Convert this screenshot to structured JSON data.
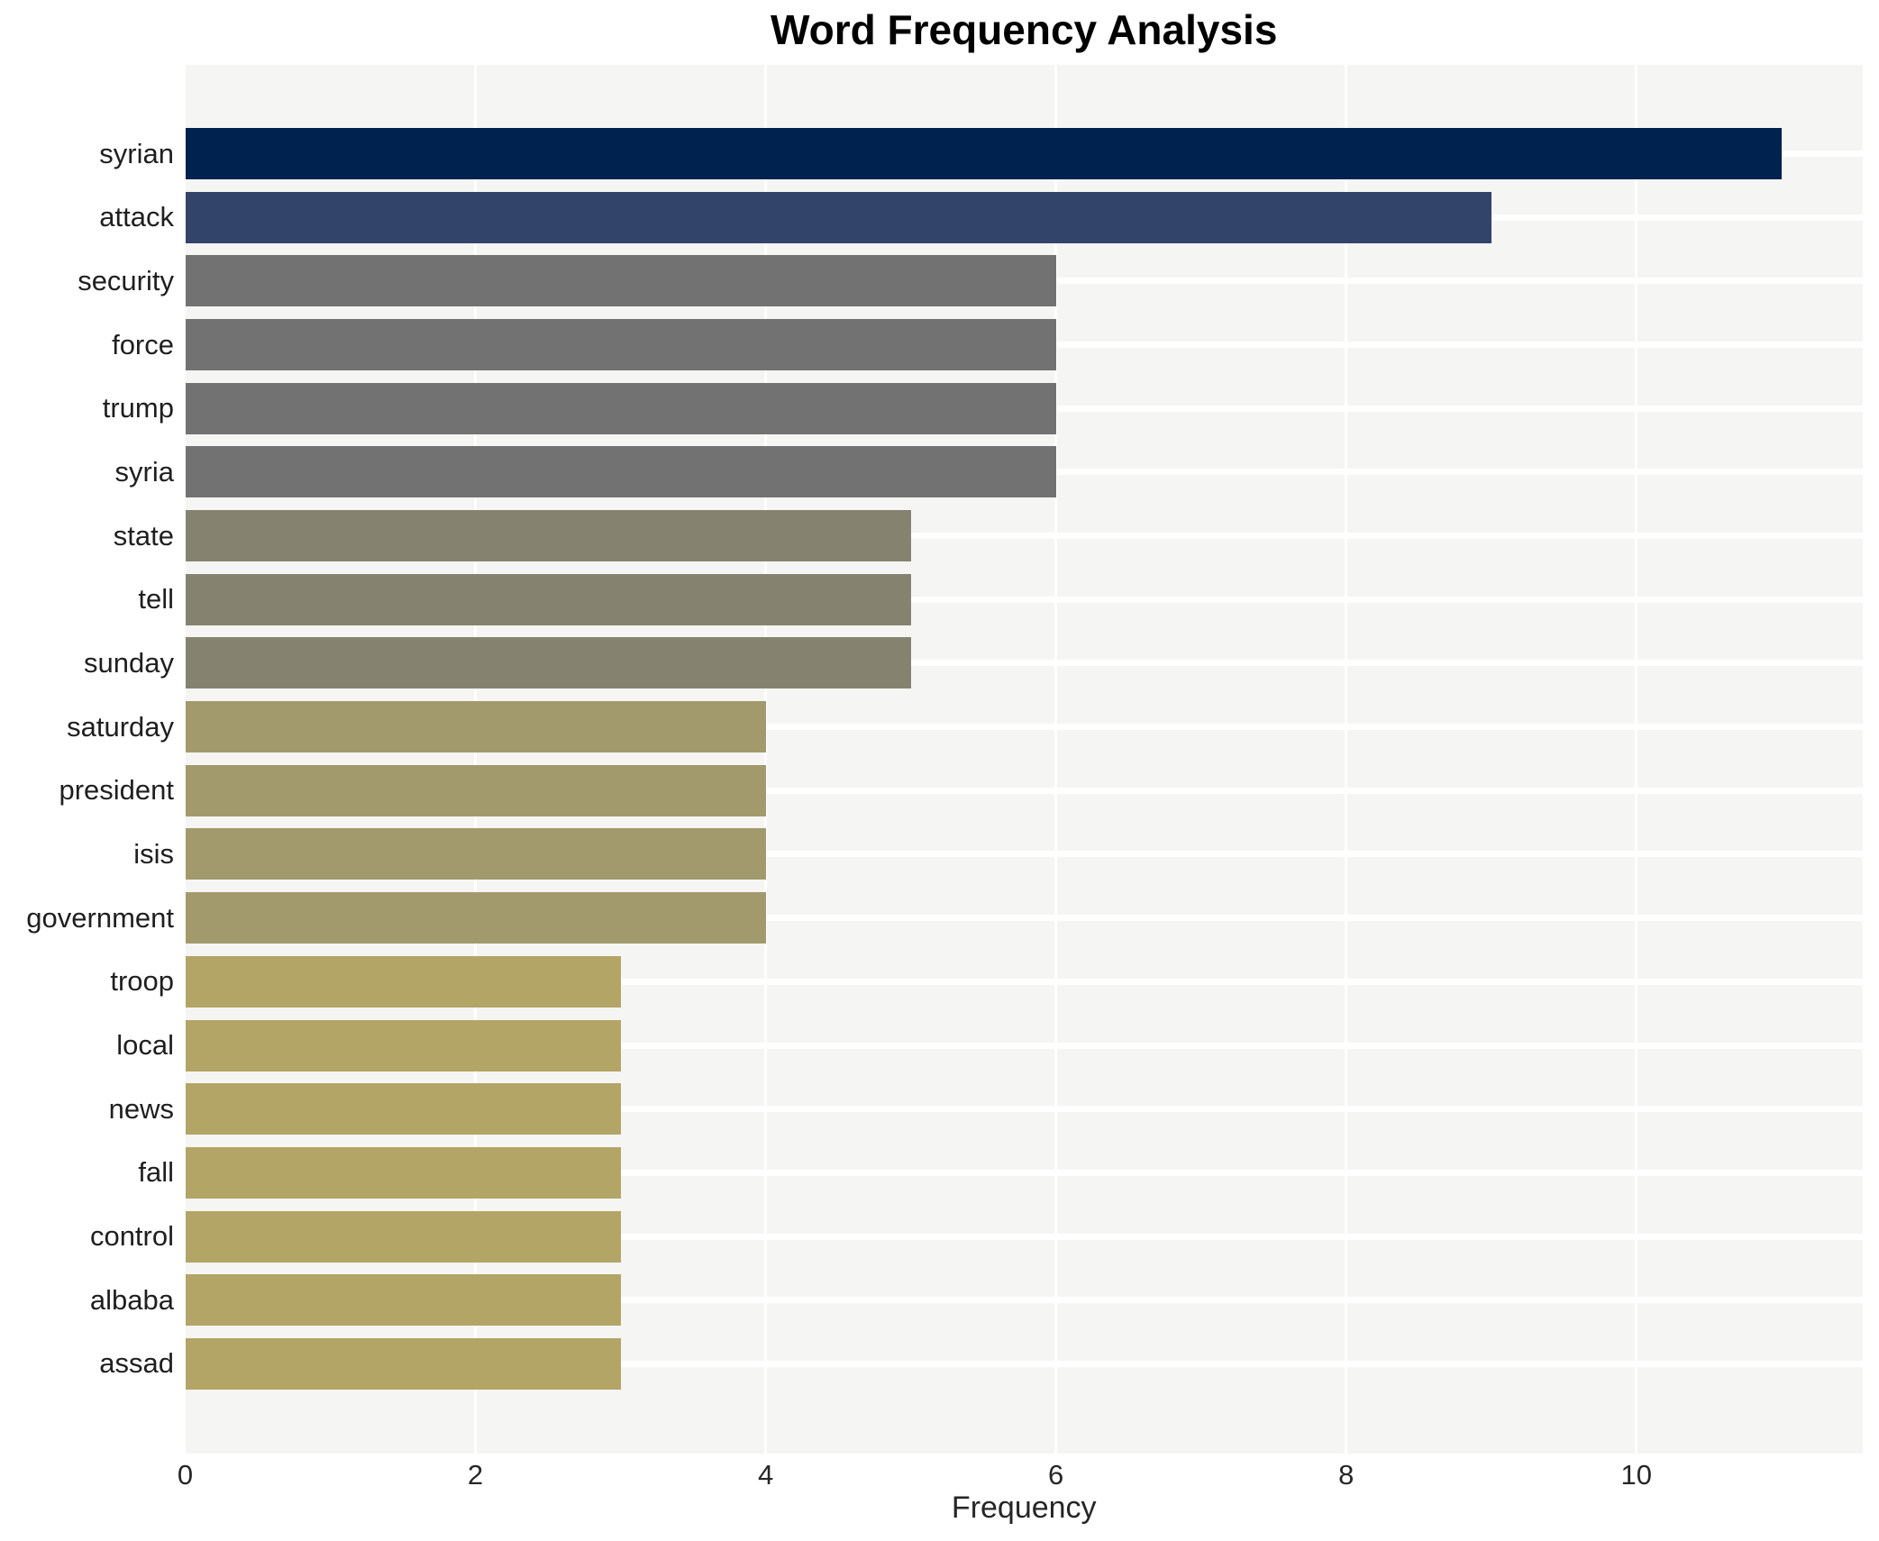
{
  "chart_data": {
    "type": "bar",
    "orientation": "horizontal",
    "title": "Word Frequency Analysis",
    "xlabel": "Frequency",
    "ylabel": "",
    "categories": [
      "syrian",
      "attack",
      "security",
      "force",
      "trump",
      "syria",
      "state",
      "tell",
      "sunday",
      "saturday",
      "president",
      "isis",
      "government",
      "troop",
      "local",
      "news",
      "fall",
      "control",
      "albaba",
      "assad"
    ],
    "values": [
      11,
      9,
      6,
      6,
      6,
      6,
      5,
      5,
      5,
      4,
      4,
      4,
      4,
      3,
      3,
      3,
      3,
      3,
      3,
      3
    ],
    "bar_colors": [
      "#00224e",
      "#33446b",
      "#727272",
      "#727272",
      "#727272",
      "#727272",
      "#858370",
      "#858370",
      "#858370",
      "#a29a6c",
      "#a29a6c",
      "#a29a6c",
      "#a29a6c",
      "#b2a566",
      "#b2a566",
      "#b2a566",
      "#b2a566",
      "#b2a566",
      "#b2a566",
      "#b2a566"
    ],
    "x_ticks": [
      0,
      2,
      4,
      6,
      8,
      10
    ],
    "xlim": [
      0,
      11.56
    ],
    "grid": true,
    "legend": "none",
    "plot_bg_color": "#f5f5f3",
    "gridline_color": "#ffffff",
    "title_color": "#000000",
    "tick_label_color": "#262626"
  }
}
